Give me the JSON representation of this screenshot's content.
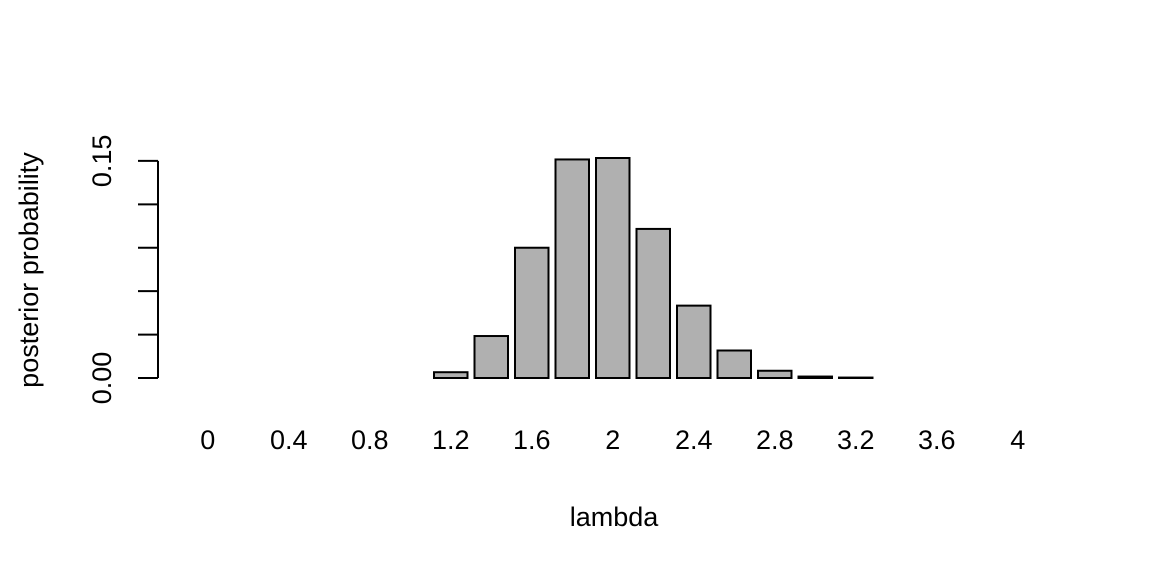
{
  "chart_data": {
    "type": "bar",
    "categories": [
      "0",
      "0.2",
      "0.4",
      "0.6",
      "0.8",
      "1",
      "1.2",
      "1.4",
      "1.6",
      "1.8",
      "2",
      "2.2",
      "2.4",
      "2.6",
      "2.8",
      "3",
      "3.2",
      "3.4",
      "3.6",
      "3.8",
      "4"
    ],
    "values": [
      0,
      0,
      0,
      0,
      0,
      0,
      0.004,
      0.029,
      0.09,
      0.151,
      0.152,
      0.103,
      0.05,
      0.019,
      0.005,
      0.001,
      0.0003,
      0,
      0,
      0,
      0
    ],
    "x_tick_labels": [
      "0",
      "0.4",
      "0.8",
      "1.2",
      "1.6",
      "2",
      "2.4",
      "2.8",
      "3.2",
      "3.6",
      "4"
    ],
    "y_tick_values": [
      0,
      0.03,
      0.06,
      0.09,
      0.12,
      0.15
    ],
    "y_tick_labels": [
      "0.00",
      "",
      "",
      "",
      "",
      "0.15"
    ],
    "xlabel": "lambda",
    "ylabel": "posterior probability",
    "ylim": [
      0,
      0.152
    ],
    "grid": false,
    "bar_color": "#b0b0b0",
    "bar_stroke": "#000000"
  }
}
